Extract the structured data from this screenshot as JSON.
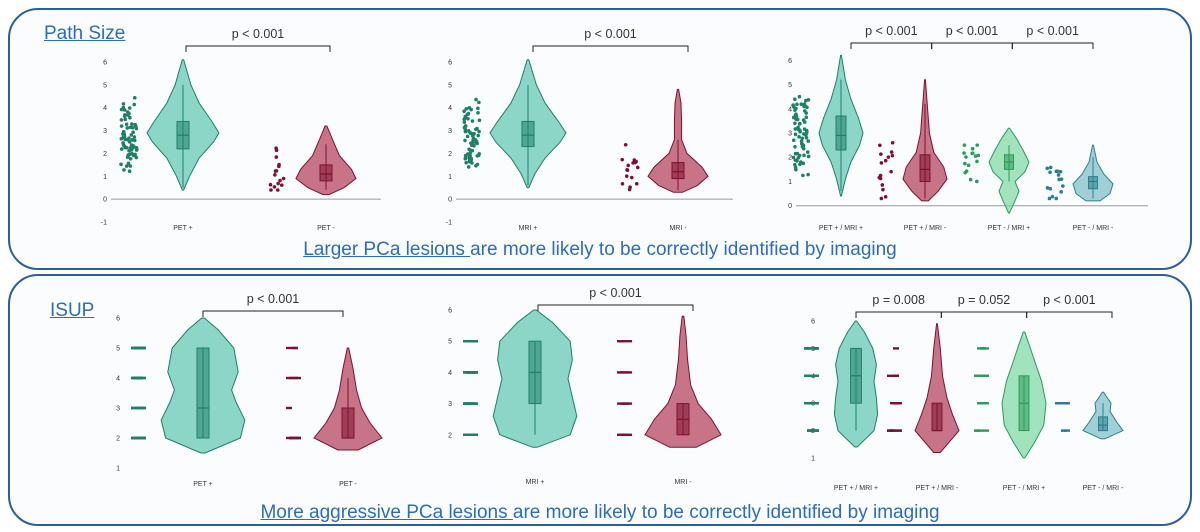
{
  "colors": {
    "teal": "#5cc6b0",
    "teal_dark": "#1f7f68",
    "red": "#b23b55",
    "red_dark": "#7d1230",
    "green": "#79d89f",
    "green_dark": "#2e9a5b",
    "blue": "#79bcc6",
    "blue_dark": "#2c7f8f",
    "axis": "#9a9a9a",
    "frame": "#2f5f91",
    "caption": "#2e6db6"
  },
  "sections": [
    {
      "title": "Path Size",
      "caption_link": "Larger PCa lesions ",
      "caption_rest": "are more likely to be correctly identified by imaging"
    },
    {
      "title": "ISUP",
      "caption_link": "More aggressive PCa lesions ",
      "caption_rest": "are more likely to be correctly identified by imaging"
    }
  ],
  "chart_data": [
    {
      "type": "violin",
      "section": "Path Size",
      "yticks": [
        -1,
        0,
        1,
        2,
        3,
        4,
        5,
        6
      ],
      "ylim": [
        -1,
        6
      ],
      "categories": [
        "PET +",
        "PET -"
      ],
      "series": [
        {
          "category": "PET +",
          "color": "teal",
          "box": [
            2.2,
            2.8,
            3.4
          ],
          "whisker": [
            0.5,
            5.0
          ],
          "range": [
            0.4,
            6.1
          ],
          "shape": [
            [
              0.4,
              0.02
            ],
            [
              1.0,
              0.18
            ],
            [
              1.8,
              0.45
            ],
            [
              2.5,
              0.85
            ],
            [
              2.9,
              1.0
            ],
            [
              3.4,
              0.8
            ],
            [
              4.2,
              0.45
            ],
            [
              5.0,
              0.22
            ],
            [
              6.1,
              0.02
            ]
          ]
        },
        {
          "category": "PET -",
          "color": "red",
          "box": [
            0.8,
            1.1,
            1.5
          ],
          "whisker": [
            0.4,
            2.4
          ],
          "range": [
            0.2,
            3.2
          ],
          "shape": [
            [
              0.2,
              0.1
            ],
            [
              0.5,
              0.6
            ],
            [
              0.9,
              1.0
            ],
            [
              1.3,
              0.85
            ],
            [
              1.9,
              0.45
            ],
            [
              2.6,
              0.22
            ],
            [
              3.2,
              0.03
            ]
          ]
        }
      ],
      "p_values": [
        {
          "from": 0,
          "to": 1,
          "label": "p < 0.001"
        }
      ]
    },
    {
      "type": "violin",
      "section": "Path Size",
      "yticks": [
        -1,
        0,
        1,
        2,
        3,
        4,
        5,
        6
      ],
      "ylim": [
        -1,
        6
      ],
      "categories": [
        "MRI +",
        "MRI -"
      ],
      "series": [
        {
          "category": "MRI +",
          "color": "teal",
          "box": [
            2.3,
            2.8,
            3.4
          ],
          "whisker": [
            0.6,
            5.0
          ],
          "range": [
            0.5,
            6.1
          ],
          "shape": [
            [
              0.5,
              0.02
            ],
            [
              1.1,
              0.18
            ],
            [
              1.8,
              0.45
            ],
            [
              2.5,
              0.85
            ],
            [
              2.9,
              1.0
            ],
            [
              3.4,
              0.8
            ],
            [
              4.2,
              0.45
            ],
            [
              5.0,
              0.22
            ],
            [
              6.1,
              0.02
            ]
          ]
        },
        {
          "category": "MRI -",
          "color": "red",
          "box": [
            0.9,
            1.2,
            1.6
          ],
          "whisker": [
            0.4,
            2.6
          ],
          "range": [
            0.3,
            4.8
          ],
          "shape": [
            [
              0.3,
              0.15
            ],
            [
              0.6,
              0.65
            ],
            [
              1.0,
              1.0
            ],
            [
              1.4,
              0.8
            ],
            [
              2.0,
              0.3
            ],
            [
              2.6,
              0.12
            ],
            [
              3.4,
              0.12
            ],
            [
              4.2,
              0.1
            ],
            [
              4.8,
              0.02
            ]
          ]
        }
      ],
      "p_values": [
        {
          "from": 0,
          "to": 1,
          "label": "p < 0.001"
        }
      ]
    },
    {
      "type": "violin",
      "section": "Path Size",
      "yticks": [
        0,
        1,
        2,
        3,
        4,
        5,
        6
      ],
      "ylim": [
        -0.3,
        6.3
      ],
      "categories": [
        "PET + / MRI +",
        "PET + / MRI -",
        "PET - / MRI +",
        "PET - / MRI -"
      ],
      "series": [
        {
          "category": "PET + / MRI +",
          "color": "teal",
          "box": [
            2.3,
            2.9,
            3.7
          ],
          "whisker": [
            0.6,
            5.2
          ],
          "range": [
            0.4,
            6.2
          ],
          "shape": [
            [
              0.4,
              0.02
            ],
            [
              1.1,
              0.2
            ],
            [
              1.8,
              0.45
            ],
            [
              2.5,
              0.85
            ],
            [
              3.0,
              1.0
            ],
            [
              3.6,
              0.8
            ],
            [
              4.4,
              0.45
            ],
            [
              5.2,
              0.2
            ],
            [
              6.2,
              0.02
            ]
          ]
        },
        {
          "category": "PET + / MRI -",
          "color": "red",
          "box": [
            1.0,
            1.5,
            2.1
          ],
          "whisker": [
            0.3,
            4.2
          ],
          "range": [
            0.2,
            5.2
          ],
          "shape": [
            [
              0.2,
              0.15
            ],
            [
              0.6,
              0.6
            ],
            [
              1.1,
              1.0
            ],
            [
              1.6,
              0.85
            ],
            [
              2.2,
              0.4
            ],
            [
              3.0,
              0.2
            ],
            [
              4.0,
              0.12
            ],
            [
              5.2,
              0.02
            ]
          ]
        },
        {
          "category": "PET - / MRI +",
          "color": "green",
          "box": [
            1.5,
            1.8,
            2.1
          ],
          "whisker": [
            1.0,
            2.5
          ],
          "range": [
            -0.3,
            3.2
          ],
          "shape": [
            [
              -0.3,
              0.02
            ],
            [
              0.2,
              0.3
            ],
            [
              0.6,
              0.5
            ],
            [
              1.0,
              0.3
            ],
            [
              1.4,
              0.8
            ],
            [
              1.8,
              1.0
            ],
            [
              2.3,
              0.7
            ],
            [
              2.8,
              0.35
            ],
            [
              3.2,
              0.03
            ]
          ]
        },
        {
          "category": "PET - / MRI -",
          "color": "blue",
          "box": [
            0.7,
            1.0,
            1.2
          ],
          "whisker": [
            0.3,
            2.0
          ],
          "range": [
            0.2,
            2.5
          ],
          "shape": [
            [
              0.2,
              0.35
            ],
            [
              0.5,
              0.85
            ],
            [
              0.9,
              1.0
            ],
            [
              1.3,
              0.55
            ],
            [
              1.8,
              0.2
            ],
            [
              2.5,
              0.02
            ]
          ]
        }
      ],
      "p_values": [
        {
          "from": 0,
          "to": 1,
          "label": "p < 0.001"
        },
        {
          "from": 1,
          "to": 2,
          "label": "p < 0.001"
        },
        {
          "from": 2,
          "to": 3,
          "label": "p < 0.001"
        }
      ]
    },
    {
      "type": "violin",
      "section": "ISUP",
      "yticks": [
        1,
        2,
        3,
        4,
        5,
        6
      ],
      "ylim": [
        1,
        6
      ],
      "categories": [
        "PET +",
        "PET -"
      ],
      "series": [
        {
          "category": "PET +",
          "color": "teal",
          "box": [
            2.0,
            3.0,
            5.0
          ],
          "whisker": [
            2.0,
            5.0
          ],
          "range": [
            1.5,
            6.0
          ],
          "shape": [
            [
              1.5,
              0.05
            ],
            [
              2.0,
              0.85
            ],
            [
              2.6,
              0.95
            ],
            [
              3.2,
              0.75
            ],
            [
              3.6,
              0.65
            ],
            [
              4.2,
              0.8
            ],
            [
              5.0,
              0.7
            ],
            [
              5.6,
              0.35
            ],
            [
              6.0,
              0.03
            ]
          ]
        },
        {
          "category": "PET -",
          "color": "red",
          "box": [
            2.0,
            2.0,
            3.0
          ],
          "whisker": [
            2.0,
            4.0
          ],
          "range": [
            1.6,
            5.0
          ],
          "shape": [
            [
              1.6,
              0.3
            ],
            [
              2.0,
              1.0
            ],
            [
              2.5,
              0.65
            ],
            [
              3.0,
              0.4
            ],
            [
              3.6,
              0.25
            ],
            [
              4.3,
              0.15
            ],
            [
              5.0,
              0.02
            ]
          ]
        }
      ],
      "p_values": [
        {
          "from": 0,
          "to": 1,
          "label": "p < 0.001"
        }
      ]
    },
    {
      "type": "violin",
      "section": "ISUP",
      "yticks": [
        2,
        3,
        4,
        5,
        6
      ],
      "ylim": [
        1,
        6
      ],
      "categories": [
        "MRI +",
        "MRI -"
      ],
      "series": [
        {
          "category": "MRI +",
          "color": "teal",
          "box": [
            3.0,
            4.0,
            5.0
          ],
          "whisker": [
            2.0,
            5.0
          ],
          "range": [
            1.6,
            6.0
          ],
          "shape": [
            [
              1.6,
              0.05
            ],
            [
              2.0,
              0.8
            ],
            [
              2.6,
              0.95
            ],
            [
              3.2,
              0.85
            ],
            [
              3.8,
              0.75
            ],
            [
              4.4,
              0.85
            ],
            [
              5.0,
              0.8
            ],
            [
              5.6,
              0.4
            ],
            [
              6.0,
              0.03
            ]
          ]
        },
        {
          "category": "MRI -",
          "color": "red",
          "box": [
            2.0,
            2.5,
            3.0
          ],
          "whisker": [
            2.0,
            3.0
          ],
          "range": [
            1.6,
            5.8
          ],
          "shape": [
            [
              1.6,
              0.35
            ],
            [
              2.0,
              1.0
            ],
            [
              2.5,
              0.75
            ],
            [
              3.0,
              0.4
            ],
            [
              3.6,
              0.2
            ],
            [
              4.4,
              0.12
            ],
            [
              5.2,
              0.08
            ],
            [
              5.8,
              0.02
            ]
          ]
        }
      ],
      "p_values": [
        {
          "from": 0,
          "to": 1,
          "label": "p < 0.001"
        }
      ]
    },
    {
      "type": "violin",
      "section": "ISUP",
      "yticks": [
        1,
        2,
        3,
        4,
        5,
        6
      ],
      "ylim": [
        1,
        6
      ],
      "categories": [
        "PET + / MRI +",
        "PET + / MRI -",
        "PET - / MRI +",
        "PET - / MRI -"
      ],
      "series": [
        {
          "category": "PET + / MRI +",
          "color": "teal",
          "box": [
            3.0,
            4.0,
            5.0
          ],
          "whisker": [
            2.0,
            5.0
          ],
          "range": [
            1.4,
            6.0
          ],
          "shape": [
            [
              1.4,
              0.05
            ],
            [
              2.0,
              0.75
            ],
            [
              2.6,
              0.9
            ],
            [
              3.2,
              0.85
            ],
            [
              3.8,
              0.75
            ],
            [
              4.4,
              0.85
            ],
            [
              5.0,
              0.7
            ],
            [
              5.6,
              0.35
            ],
            [
              6.0,
              0.03
            ]
          ]
        },
        {
          "category": "PET + / MRI -",
          "color": "red",
          "box": [
            2.0,
            2.0,
            3.0
          ],
          "whisker": [
            2.0,
            3.0
          ],
          "range": [
            1.2,
            5.9
          ],
          "shape": [
            [
              1.2,
              0.15
            ],
            [
              2.0,
              1.0
            ],
            [
              2.6,
              0.7
            ],
            [
              3.2,
              0.45
            ],
            [
              4.0,
              0.25
            ],
            [
              5.0,
              0.15
            ],
            [
              5.9,
              0.02
            ]
          ]
        },
        {
          "category": "PET - / MRI +",
          "color": "green",
          "box": [
            2.0,
            3.0,
            4.0
          ],
          "whisker": [
            2.0,
            4.0
          ],
          "range": [
            1.0,
            5.6
          ],
          "shape": [
            [
              1.0,
              0.03
            ],
            [
              1.6,
              0.5
            ],
            [
              2.2,
              0.9
            ],
            [
              3.0,
              1.0
            ],
            [
              3.8,
              0.8
            ],
            [
              4.5,
              0.5
            ],
            [
              5.1,
              0.25
            ],
            [
              5.6,
              0.03
            ]
          ]
        },
        {
          "category": "PET - / MRI -",
          "color": "blue",
          "box": [
            2.0,
            2.2,
            2.5
          ],
          "whisker": [
            2.0,
            3.0
          ],
          "range": [
            1.7,
            3.4
          ],
          "shape": [
            [
              1.7,
              0.1
            ],
            [
              2.0,
              1.0
            ],
            [
              2.3,
              0.7
            ],
            [
              2.7,
              0.35
            ],
            [
              3.0,
              0.4
            ],
            [
              3.4,
              0.03
            ]
          ]
        }
      ],
      "p_values": [
        {
          "from": 0,
          "to": 1,
          "label": "p = 0.008"
        },
        {
          "from": 1,
          "to": 2,
          "label": "p = 0.052"
        },
        {
          "from": 2,
          "to": 3,
          "label": "p < 0.001"
        }
      ]
    }
  ]
}
